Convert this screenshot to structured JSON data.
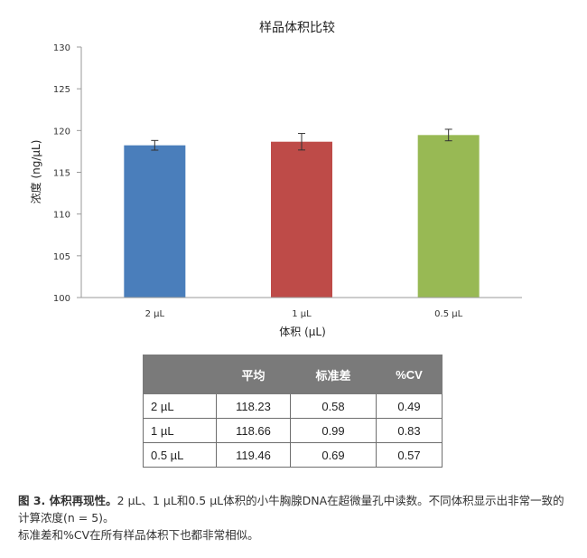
{
  "chart_data": {
    "type": "bar",
    "title": "样品体积比较",
    "xlabel": "体积 (µL)",
    "ylabel": "浓度 (ng/µL)",
    "categories": [
      "2 µL",
      "1 µL",
      "0.5 µL"
    ],
    "values": [
      118.23,
      118.66,
      119.46
    ],
    "error": [
      0.58,
      0.99,
      0.69
    ],
    "ylim": [
      100,
      130
    ],
    "yticks": [
      "100",
      "105",
      "110",
      "115",
      "120",
      "125",
      "130"
    ],
    "colors": [
      "#4a7ebb",
      "#be4b48",
      "#98b954"
    ],
    "grid": false,
    "legend": "none"
  },
  "table": {
    "headers": [
      "",
      "平均",
      "标准差",
      "%CV"
    ],
    "rows": [
      [
        "2 µL",
        "118.23",
        "0.58",
        "0.49"
      ],
      [
        "1 µL",
        "118.66",
        "0.99",
        "0.83"
      ],
      [
        "0.5 µL",
        "119.46",
        "0.69",
        "0.57"
      ]
    ]
  },
  "caption": {
    "label": "图 3. 体积再现性。",
    "line1": "2 µL、1 µL和0.5 µL体积的小牛胸腺DNA在超微量孔中读数。不同体积显示出非常一致的计算浓度(n = 5)。",
    "line2": "标准差和%CV在所有样品体积下也都非常相似。"
  }
}
